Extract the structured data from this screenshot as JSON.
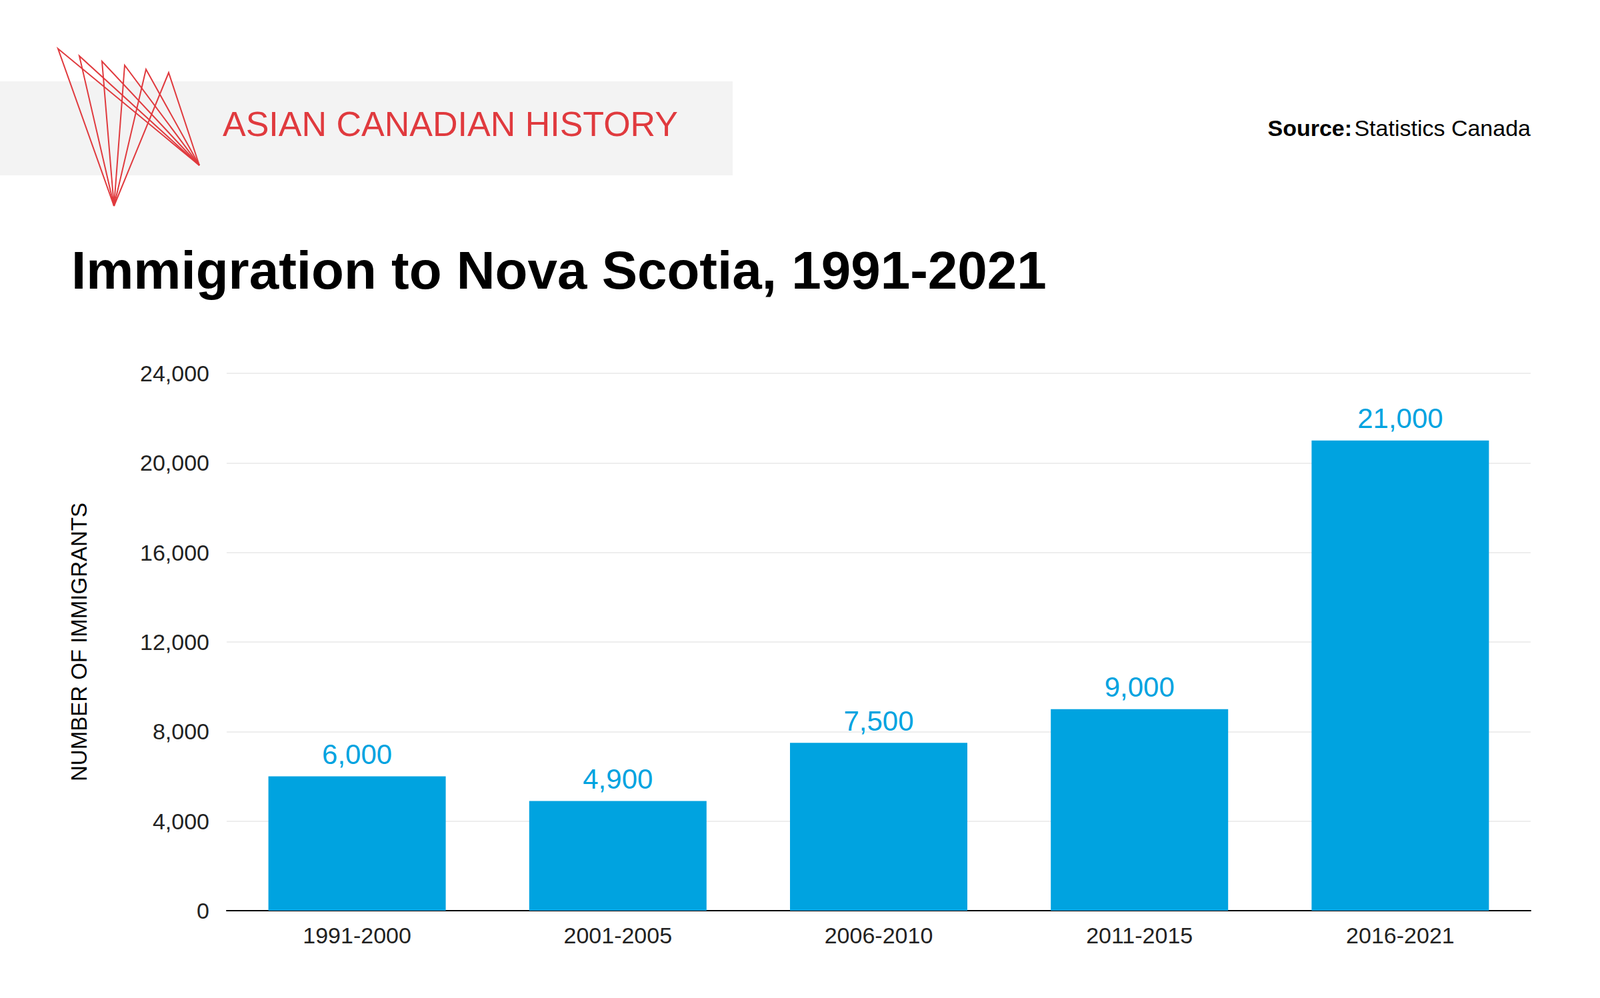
{
  "chart_data": {
    "type": "bar",
    "title": "Immigration to Nova Scotia, 1991-2021",
    "annotations": [
      {
        "text": "ASIAN CANADIAN HISTORY"
      },
      {
        "label": "Source:",
        "text": "Statistics Canada"
      }
    ],
    "ylabel": "NUMBER OF IMMIGRANTS",
    "categories": [
      "1991-2000",
      "2001-2005",
      "2006-2010",
      "2011-2015",
      "2016-2021"
    ],
    "values": [
      6000,
      4900,
      7500,
      9000,
      21000
    ],
    "value_labels": [
      "6,000",
      "4,900",
      "7,500",
      "9,000",
      "21,000"
    ],
    "color": "#00a3e0",
    "ylim": [
      0,
      24000
    ],
    "yticks": [
      0,
      {
        "value": 4000,
        "label": "4,000"
      },
      {
        "value": 8000,
        "label": "8,000"
      },
      {
        "value": 12000,
        "label": "12,000"
      },
      {
        "value": 16000,
        "label": "16,000"
      },
      {
        "value": 20000,
        "label": "20,000"
      },
      {
        "value": 24000,
        "label": "24,000"
      }
    ],
    "grid": true,
    "data_labels": true
  }
}
